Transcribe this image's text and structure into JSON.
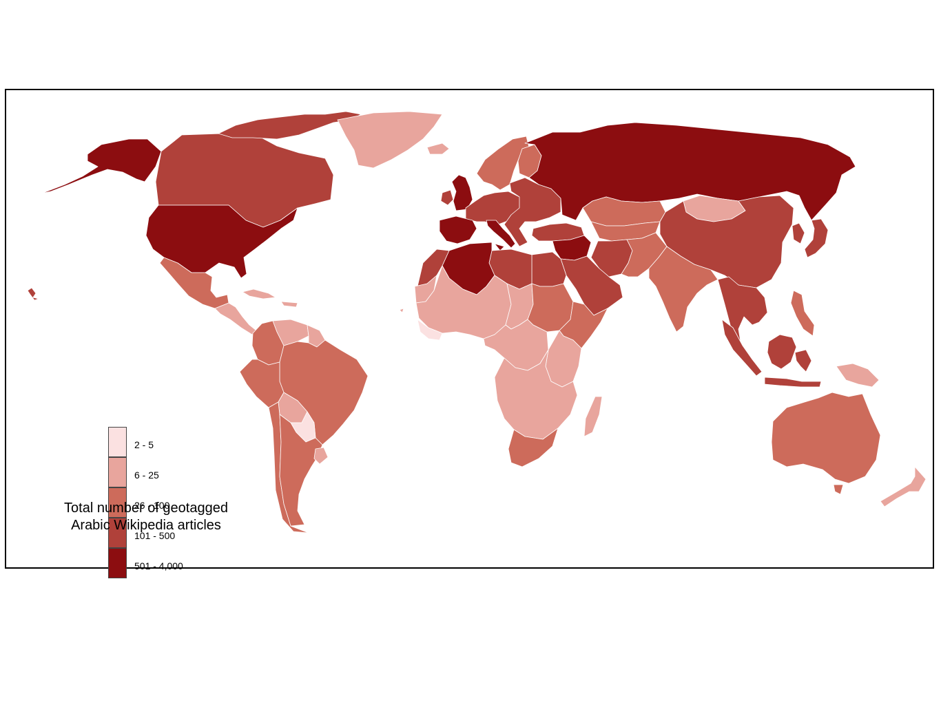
{
  "legend": {
    "title_line1": "Total number of geotagged",
    "title_line2": "Arabic Wikipedia articles",
    "classes": [
      {
        "label": "2 - 5",
        "color": "#fbe1e1"
      },
      {
        "label": "6 - 25",
        "color": "#e8a59d"
      },
      {
        "label": "26 - 100",
        "color": "#cd6b5b"
      },
      {
        "label": "101 - 500",
        "color": "#b0413a"
      },
      {
        "label": "501 - 4,000",
        "color": "#8c0d10"
      }
    ]
  },
  "map": {
    "border_color": "#ffffff",
    "regions": [
      {
        "name": "alaska",
        "class": 4
      },
      {
        "name": "canada",
        "class": 3
      },
      {
        "name": "canada-arctic-islands",
        "class": 3
      },
      {
        "name": "greenland",
        "class": 1
      },
      {
        "name": "united-states",
        "class": 4
      },
      {
        "name": "mexico",
        "class": 2
      },
      {
        "name": "central-america",
        "class": 1
      },
      {
        "name": "caribbean",
        "class": 1
      },
      {
        "name": "colombia",
        "class": 2
      },
      {
        "name": "venezuela",
        "class": 1
      },
      {
        "name": "guiana-coast",
        "class": 1
      },
      {
        "name": "brazil",
        "class": 2
      },
      {
        "name": "peru",
        "class": 2
      },
      {
        "name": "bolivia",
        "class": 1
      },
      {
        "name": "paraguay",
        "class": 0
      },
      {
        "name": "chile",
        "class": 2
      },
      {
        "name": "argentina",
        "class": 2
      },
      {
        "name": "uruguay",
        "class": 1
      },
      {
        "name": "iceland",
        "class": 1
      },
      {
        "name": "united-kingdom",
        "class": 4
      },
      {
        "name": "ireland",
        "class": 3
      },
      {
        "name": "scandinavia",
        "class": 2
      },
      {
        "name": "finland",
        "class": 2
      },
      {
        "name": "western-europe",
        "class": 3
      },
      {
        "name": "iberia",
        "class": 4
      },
      {
        "name": "italy",
        "class": 4
      },
      {
        "name": "eastern-europe",
        "class": 3
      },
      {
        "name": "turkey",
        "class": 3
      },
      {
        "name": "russia",
        "class": 4
      },
      {
        "name": "kazakhstan",
        "class": 2
      },
      {
        "name": "central-asia",
        "class": 2
      },
      {
        "name": "mongolia",
        "class": 1
      },
      {
        "name": "china",
        "class": 3
      },
      {
        "name": "korea",
        "class": 3
      },
      {
        "name": "japan",
        "class": 3
      },
      {
        "name": "iran",
        "class": 3
      },
      {
        "name": "afghanistan-pakistan",
        "class": 2
      },
      {
        "name": "india",
        "class": 2
      },
      {
        "name": "southeast-asia",
        "class": 3
      },
      {
        "name": "philippines",
        "class": 2
      },
      {
        "name": "indonesia",
        "class": 3
      },
      {
        "name": "borneo",
        "class": 3
      },
      {
        "name": "new-guinea",
        "class": 1
      },
      {
        "name": "levant",
        "class": 4
      },
      {
        "name": "arabian-peninsula",
        "class": 3
      },
      {
        "name": "egypt",
        "class": 3
      },
      {
        "name": "libya",
        "class": 3
      },
      {
        "name": "algeria",
        "class": 4
      },
      {
        "name": "morocco",
        "class": 3
      },
      {
        "name": "western-sahara",
        "class": 1
      },
      {
        "name": "west-africa",
        "class": 1
      },
      {
        "name": "west-africa-coast",
        "class": 0
      },
      {
        "name": "sahel-central",
        "class": 1
      },
      {
        "name": "sudan",
        "class": 2
      },
      {
        "name": "horn-of-africa",
        "class": 2
      },
      {
        "name": "central-africa",
        "class": 1
      },
      {
        "name": "east-africa",
        "class": 1
      },
      {
        "name": "southern-africa",
        "class": 1
      },
      {
        "name": "south-africa",
        "class": 2
      },
      {
        "name": "madagascar",
        "class": 1
      },
      {
        "name": "australia",
        "class": 2
      },
      {
        "name": "new-zealand",
        "class": 1
      },
      {
        "name": "hawaii",
        "class": 3
      }
    ]
  }
}
